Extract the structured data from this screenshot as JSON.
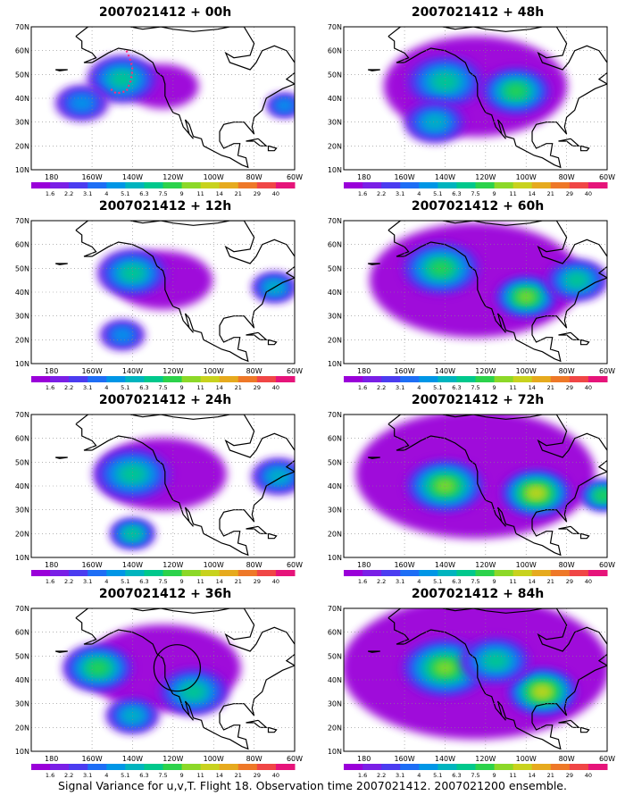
{
  "figure_caption": "Signal Variance for u,v,T. Flight 18. Observation time 2007021412. 2007021200 ensemble.",
  "color_scale": {
    "labels": [
      "1.6",
      "2.2",
      "3.1",
      "4",
      "5.1",
      "6.3",
      "7.5",
      "9",
      "11",
      "14",
      "21",
      "29",
      "40"
    ],
    "colors": [
      "#9a00d9",
      "#7a1fe6",
      "#4b3cf0",
      "#1e6ef5",
      "#0096e6",
      "#00b4be",
      "#00c88c",
      "#2cd24b",
      "#8cd828",
      "#c8d21e",
      "#e6aa1e",
      "#ee7828",
      "#f04646",
      "#e6147a"
    ]
  },
  "panels": [
    {
      "id": "p00",
      "title": "2007021412 + 00h",
      "lead_hours": 0,
      "features": [
        {
          "lon": -145,
          "lat": 48,
          "level": 0.6,
          "spread": 7
        },
        {
          "lon": -165,
          "lat": 38,
          "level": 0.35,
          "spread": 5
        },
        {
          "lon": -65,
          "lat": 37,
          "level": 0.4,
          "spread": 3
        }
      ],
      "annotation": "flight track (dotted)"
    },
    {
      "id": "p48",
      "title": "2007021412 + 48h",
      "lead_hours": 48,
      "features": [
        {
          "lon": -140,
          "lat": 47,
          "level": 0.6,
          "spread": 8
        },
        {
          "lon": -105,
          "lat": 43,
          "level": 0.65,
          "spread": 7
        },
        {
          "lon": -145,
          "lat": 30,
          "level": 0.45,
          "spread": 6
        }
      ]
    },
    {
      "id": "p12",
      "title": "2007021412 + 12h",
      "lead_hours": 12,
      "features": [
        {
          "lon": -140,
          "lat": 48,
          "level": 0.55,
          "spread": 7
        },
        {
          "lon": -70,
          "lat": 42,
          "level": 0.45,
          "spread": 4
        },
        {
          "lon": -145,
          "lat": 22,
          "level": 0.35,
          "spread": 4
        }
      ]
    },
    {
      "id": "p60",
      "title": "2007021412 + 60h",
      "lead_hours": 60,
      "features": [
        {
          "lon": -142,
          "lat": 50,
          "level": 0.7,
          "spread": 8
        },
        {
          "lon": -100,
          "lat": 38,
          "level": 0.8,
          "spread": 6
        },
        {
          "lon": -75,
          "lat": 45,
          "level": 0.55,
          "spread": 6
        }
      ]
    },
    {
      "id": "p24",
      "title": "2007021412 + 24h",
      "lead_hours": 24,
      "features": [
        {
          "lon": -140,
          "lat": 45,
          "level": 0.6,
          "spread": 8
        },
        {
          "lon": -140,
          "lat": 20,
          "level": 0.55,
          "spread": 4
        },
        {
          "lon": -68,
          "lat": 44,
          "level": 0.45,
          "spread": 5
        }
      ]
    },
    {
      "id": "p72",
      "title": "2007021412 + 72h",
      "lead_hours": 72,
      "features": [
        {
          "lon": -140,
          "lat": 40,
          "level": 0.75,
          "spread": 8
        },
        {
          "lon": -95,
          "lat": 37,
          "level": 0.85,
          "spread": 7
        },
        {
          "lon": -62,
          "lat": 36,
          "level": 0.7,
          "spread": 4
        }
      ]
    },
    {
      "id": "p36",
      "title": "2007021412 + 36h",
      "lead_hours": 36,
      "features": [
        {
          "lon": -157,
          "lat": 45,
          "level": 0.65,
          "spread": 7
        },
        {
          "lon": -110,
          "lat": 35,
          "level": 0.6,
          "spread": 7
        },
        {
          "lon": -140,
          "lat": 25,
          "level": 0.5,
          "spread": 5
        }
      ],
      "annotation": "target circle (open)"
    },
    {
      "id": "p84",
      "title": "2007021412 + 84h",
      "lead_hours": 84,
      "features": [
        {
          "lon": -140,
          "lat": 45,
          "level": 0.75,
          "spread": 9
        },
        {
          "lon": -92,
          "lat": 35,
          "level": 0.85,
          "spread": 7
        },
        {
          "lon": -115,
          "lat": 48,
          "level": 0.6,
          "spread": 7
        }
      ]
    }
  ],
  "chart_data": {
    "type": "heatmap",
    "title": "",
    "xlabel": "",
    "ylabel": "",
    "x_ticks": [
      "180",
      "160W",
      "140W",
      "120W",
      "100W",
      "80W",
      "60W"
    ],
    "y_ticks": [
      "10N",
      "20N",
      "30N",
      "40N",
      "50N",
      "60N",
      "70N"
    ],
    "xlim": [
      -190,
      -60
    ],
    "ylim": [
      10,
      70
    ],
    "grid": true,
    "panels": [
      "2007021412 + 00h",
      "2007021412 + 48h",
      "2007021412 + 12h",
      "2007021412 + 60h",
      "2007021412 + 24h",
      "2007021412 + 72h",
      "2007021412 + 36h",
      "2007021412 + 84h"
    ],
    "color_levels": [
      1.6,
      2.2,
      3.1,
      4,
      5.1,
      6.3,
      7.5,
      9,
      11,
      14,
      21,
      29,
      40
    ]
  }
}
